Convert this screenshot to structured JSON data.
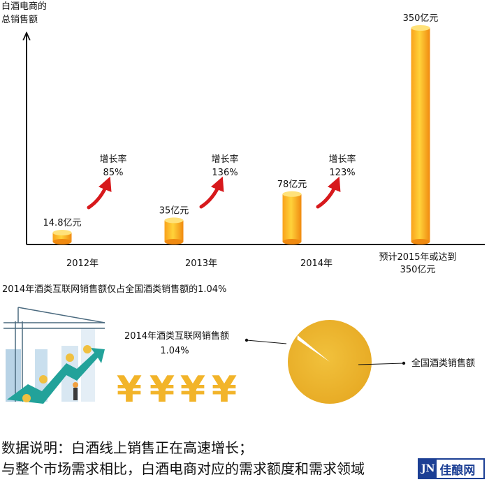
{
  "chart_data": {
    "type": "bar",
    "ylabel": "白酒电商的总销售额",
    "categories": [
      "2012年",
      "2013年",
      "2014年",
      "预计2015年或达到350亿元"
    ],
    "values": [
      14.8,
      35,
      78,
      350
    ],
    "data_labels": [
      "14.8亿元",
      "35亿元",
      "78亿元",
      "350亿元"
    ],
    "growth": [
      {
        "label": "增长率",
        "value": "85%"
      },
      {
        "label": "增长率",
        "value": "136%"
      },
      {
        "label": "增长率",
        "value": "123%"
      }
    ],
    "colors": {
      "bar_light": "#FFD23A",
      "bar_dark": "#F08A10",
      "arrow": "#D7191C",
      "pie": "#EDB62E"
    }
  },
  "share": {
    "headline": "2014年酒类互联网销售额仅占全国酒类销售额的1.04%",
    "online_label": "2014年酒类互联网销售额",
    "online_value": "1.04%",
    "total_label": "全国酒类销售额",
    "yuan_symbol": "¥"
  },
  "caption": {
    "line1": "数据说明：白酒线上销售正在高速增长；",
    "line2": "与整个市场需求相比，白酒电商对应的需求额度和需求领域"
  },
  "logo": {
    "badge": "JN",
    "name": "佳酿网"
  }
}
